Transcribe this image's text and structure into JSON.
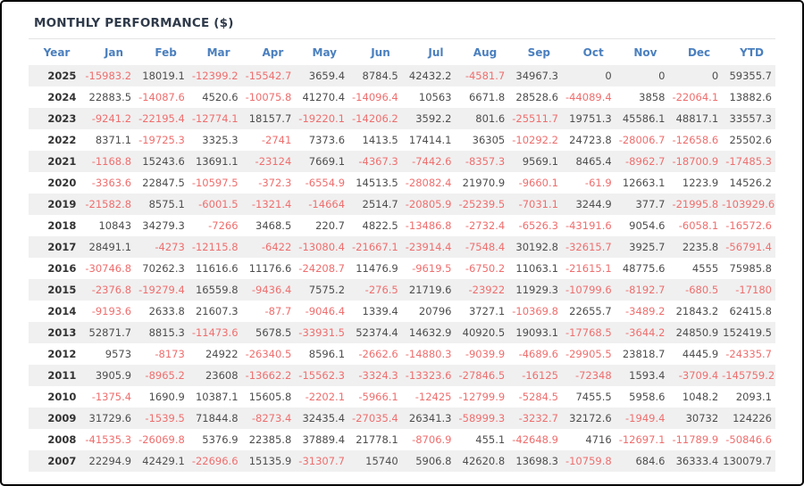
{
  "header": {
    "title": "MONTHLY PERFORMANCE ($)"
  },
  "colors": {
    "title_text": "#2f3a4a",
    "header_text": "#4a7fbe",
    "positive": "#4d4d4d",
    "negative": "#ef6e6e",
    "stripe": "#f0f0f0",
    "year_text": "#333333",
    "divider": "#e4e4e4",
    "frame": "#000000"
  },
  "table": {
    "columns": [
      "Year",
      "Jan",
      "Feb",
      "Mar",
      "Apr",
      "May",
      "Jun",
      "Jul",
      "Aug",
      "Sep",
      "Oct",
      "Nov",
      "Dec",
      "YTD"
    ],
    "rows": [
      {
        "year": "2025",
        "values": [
          "-15983.2",
          "18019.1",
          "-12399.2",
          "-15542.7",
          "3659.4",
          "8784.5",
          "42432.2",
          "-4581.7",
          "34967.3",
          "0",
          "0",
          "0",
          "59355.7"
        ]
      },
      {
        "year": "2024",
        "values": [
          "22883.5",
          "-14087.6",
          "4520.6",
          "-10075.8",
          "41270.4",
          "-14096.4",
          "10563",
          "6671.8",
          "28528.6",
          "-44089.4",
          "3858",
          "-22064.1",
          "13882.6"
        ]
      },
      {
        "year": "2023",
        "values": [
          "-9241.2",
          "-22195.4",
          "-12774.1",
          "18157.7",
          "-19220.1",
          "-14206.2",
          "3592.2",
          "801.6",
          "-25511.7",
          "19751.3",
          "45586.1",
          "48817.1",
          "33557.3"
        ]
      },
      {
        "year": "2022",
        "values": [
          "8371.1",
          "-19725.3",
          "3325.3",
          "-2741",
          "7373.6",
          "1413.5",
          "17414.1",
          "36305",
          "-10292.2",
          "24723.8",
          "-28006.7",
          "-12658.6",
          "25502.6"
        ]
      },
      {
        "year": "2021",
        "values": [
          "-1168.8",
          "15243.6",
          "13691.1",
          "-23124",
          "7669.1",
          "-4367.3",
          "-7442.6",
          "-8357.3",
          "9569.1",
          "8465.4",
          "-8962.7",
          "-18700.9",
          "-17485.3"
        ]
      },
      {
        "year": "2020",
        "values": [
          "-3363.6",
          "22847.5",
          "-10597.5",
          "-372.3",
          "-6554.9",
          "14513.5",
          "-28082.4",
          "21970.9",
          "-9660.1",
          "-61.9",
          "12663.1",
          "1223.9",
          "14526.2"
        ]
      },
      {
        "year": "2019",
        "values": [
          "-21582.8",
          "8575.1",
          "-6001.5",
          "-1321.4",
          "-14664",
          "2514.7",
          "-20805.9",
          "-25239.5",
          "-7031.1",
          "3244.9",
          "377.7",
          "-21995.8",
          "-103929.6"
        ]
      },
      {
        "year": "2018",
        "values": [
          "10843",
          "34279.3",
          "-7266",
          "3468.5",
          "220.7",
          "4822.5",
          "-13486.8",
          "-2732.4",
          "-6526.3",
          "-43191.6",
          "9054.6",
          "-6058.1",
          "-16572.6"
        ]
      },
      {
        "year": "2017",
        "values": [
          "28491.1",
          "-4273",
          "-12115.8",
          "-6422",
          "-13080.4",
          "-21667.1",
          "-23914.4",
          "-7548.4",
          "30192.8",
          "-32615.7",
          "3925.7",
          "2235.8",
          "-56791.4"
        ]
      },
      {
        "year": "2016",
        "values": [
          "-30746.8",
          "70262.3",
          "11616.6",
          "11176.6",
          "-24208.7",
          "11476.9",
          "-9619.5",
          "-6750.2",
          "11063.1",
          "-21615.1",
          "48775.6",
          "4555",
          "75985.8"
        ]
      },
      {
        "year": "2015",
        "values": [
          "-2376.8",
          "-19279.4",
          "16559.8",
          "-9436.4",
          "7575.2",
          "-276.5",
          "21719.6",
          "-23922",
          "11929.3",
          "-10799.6",
          "-8192.7",
          "-680.5",
          "-17180"
        ]
      },
      {
        "year": "2014",
        "values": [
          "-9193.6",
          "2633.8",
          "21607.3",
          "-87.7",
          "-9046.4",
          "1339.4",
          "20796",
          "3727.1",
          "-10369.8",
          "22655.7",
          "-3489.2",
          "21843.2",
          "62415.8"
        ]
      },
      {
        "year": "2013",
        "values": [
          "52871.7",
          "8815.3",
          "-11473.6",
          "5678.5",
          "-33931.5",
          "52374.4",
          "14632.9",
          "40920.5",
          "19093.1",
          "-17768.5",
          "-3644.2",
          "24850.9",
          "152419.5"
        ]
      },
      {
        "year": "2012",
        "values": [
          "9573",
          "-8173",
          "24922",
          "-26340.5",
          "8596.1",
          "-2662.6",
          "-14880.3",
          "-9039.9",
          "-4689.6",
          "-29905.5",
          "23818.7",
          "4445.9",
          "-24335.7"
        ]
      },
      {
        "year": "2011",
        "values": [
          "3905.9",
          "-8965.2",
          "23608",
          "-13662.2",
          "-15562.3",
          "-3324.3",
          "-13323.6",
          "-27846.5",
          "-16125",
          "-72348",
          "1593.4",
          "-3709.4",
          "-145759.2"
        ]
      },
      {
        "year": "2010",
        "values": [
          "-1375.4",
          "1690.9",
          "10387.1",
          "15605.8",
          "-2202.1",
          "-5966.1",
          "-12425",
          "-12799.9",
          "-5284.5",
          "7455.5",
          "5958.6",
          "1048.2",
          "2093.1"
        ]
      },
      {
        "year": "2009",
        "values": [
          "31729.6",
          "-1539.5",
          "71844.8",
          "-8273.4",
          "32435.4",
          "-27035.4",
          "26341.3",
          "-58999.3",
          "-3232.7",
          "32172.6",
          "-1949.4",
          "30732",
          "124226"
        ]
      },
      {
        "year": "2008",
        "values": [
          "-41535.3",
          "-26069.8",
          "5376.9",
          "22385.8",
          "37889.4",
          "21778.1",
          "-8706.9",
          "455.1",
          "-42648.9",
          "4716",
          "-12697.1",
          "-11789.9",
          "-50846.6"
        ]
      },
      {
        "year": "2007",
        "values": [
          "22294.9",
          "42429.1",
          "-22696.6",
          "15135.9",
          "-31307.7",
          "15740",
          "5906.8",
          "42620.8",
          "13698.3",
          "-10759.8",
          "684.6",
          "36333.4",
          "130079.7"
        ]
      }
    ]
  }
}
